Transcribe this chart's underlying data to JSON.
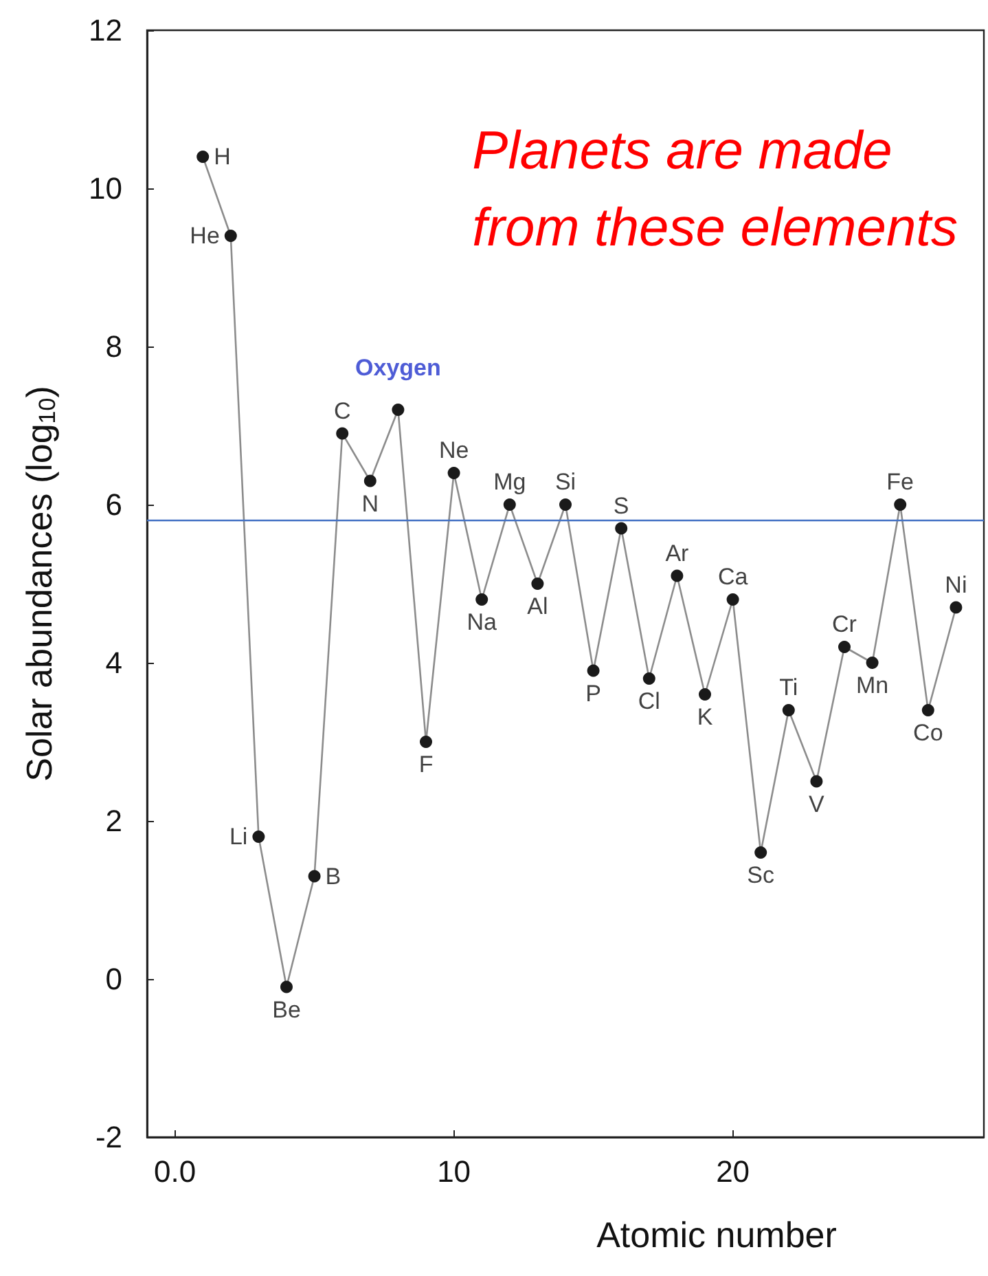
{
  "chart_data": {
    "type": "line",
    "xlabel": "Atomic number",
    "ylabel": "Solar abundances (log$_{10}$)",
    "series": [
      {
        "color": "#1a1a1a",
        "x": [
          1,
          2,
          3,
          4,
          5,
          6,
          7,
          8,
          9,
          10,
          11,
          12,
          13,
          14,
          15,
          16,
          17,
          18,
          19,
          20,
          21,
          22,
          23,
          24,
          25,
          26,
          27,
          28
        ],
        "values": [
          10.4,
          9.4,
          1.8,
          -0.1,
          1.3,
          6.9,
          6.3,
          7.2,
          3.0,
          6.4,
          4.8,
          6.0,
          5.0,
          6.0,
          3.9,
          5.7,
          3.8,
          5.1,
          3.6,
          4.8,
          1.6,
          3.4,
          2.5,
          4.2,
          4.0,
          6.0,
          3.4,
          4.7
        ]
      }
    ],
    "xlim": [
      -1,
      29
    ],
    "xticks": [
      {
        "value": 0,
        "label": "0.0"
      },
      10,
      20
    ],
    "ylim": [
      -2,
      12
    ],
    "yticks": [
      -2,
      0,
      2,
      4,
      6,
      8,
      10,
      12
    ],
    "grid": false,
    "marker": "circle",
    "line_style": "solid",
    "ref_lines": [
      {
        "axis": "y",
        "value": 5.8,
        "color": "#4472c4"
      }
    ],
    "annotations": [
      "Planets are made from these elements",
      {
        "text": "Oxygen",
        "x": 8,
        "y": 7.2
      },
      {
        "text": "H",
        "x": 1,
        "y": 10.4
      },
      {
        "text": "He",
        "x": 2,
        "y": 9.4
      },
      {
        "text": "Li",
        "x": 3,
        "y": 1.8
      },
      {
        "text": "Be",
        "x": 4,
        "y": -0.1
      },
      {
        "text": "B",
        "x": 5,
        "y": 1.3
      },
      {
        "text": "C",
        "x": 6,
        "y": 6.9
      },
      {
        "text": "N",
        "x": 7,
        "y": 6.3
      },
      {
        "text": "F",
        "x": 9,
        "y": 3.0
      },
      {
        "text": "Ne",
        "x": 10,
        "y": 6.4
      },
      {
        "text": "Na",
        "x": 11,
        "y": 4.8
      },
      {
        "text": "Mg",
        "x": 12,
        "y": 6.0
      },
      {
        "text": "Al",
        "x": 13,
        "y": 5.0
      },
      {
        "text": "Si",
        "x": 14,
        "y": 6.0
      },
      {
        "text": "P",
        "x": 15,
        "y": 3.9
      },
      {
        "text": "S",
        "x": 16,
        "y": 5.7
      },
      {
        "text": "Cl",
        "x": 17,
        "y": 3.8
      },
      {
        "text": "Ar",
        "x": 18,
        "y": 5.1
      },
      {
        "text": "K",
        "x": 19,
        "y": 3.6
      },
      {
        "text": "Ca",
        "x": 20,
        "y": 4.8
      },
      {
        "text": "Sc",
        "x": 21,
        "y": 1.6
      },
      {
        "text": "Ti",
        "x": 22,
        "y": 3.4
      },
      {
        "text": "V",
        "x": 23,
        "y": 2.5
      },
      {
        "text": "Cr",
        "x": 24,
        "y": 4.2
      },
      {
        "text": "Mn",
        "x": 25,
        "y": 4.0
      },
      {
        "text": "Fe",
        "x": 26,
        "y": 6.0
      },
      {
        "text": "Co",
        "x": 27,
        "y": 3.4
      },
      {
        "text": "Ni",
        "x": 28,
        "y": 4.7
      }
    ]
  }
}
